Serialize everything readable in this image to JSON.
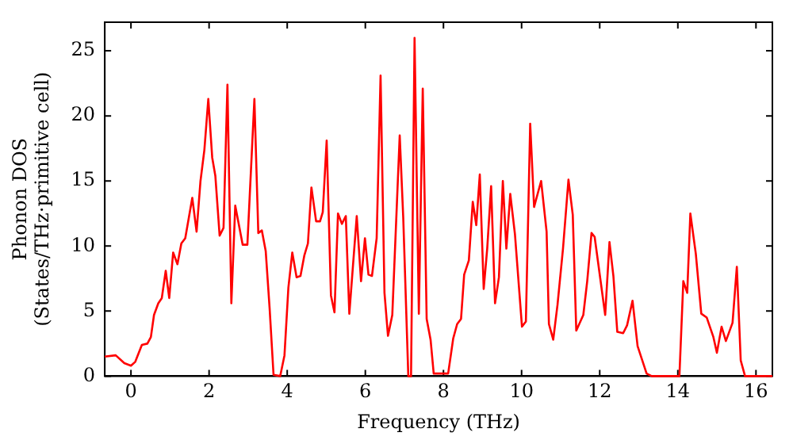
{
  "chart_data": {
    "type": "line",
    "xlabel": "Frequency (THz)",
    "ylabel": "Phonon DOS\n(States/THz·primitive cell)",
    "xlim": [
      -0.67,
      16.42
    ],
    "ylim": [
      0,
      27.2
    ],
    "xticks": [
      0,
      2,
      4,
      6,
      8,
      10,
      12,
      14,
      16
    ],
    "yticks": [
      0,
      5,
      10,
      15,
      20,
      25
    ],
    "grid": false,
    "legend": false,
    "marker": "none",
    "line_style": "solid",
    "series": [
      {
        "color": "#ff0000",
        "x": [
          -0.67,
          -0.39,
          -0.17,
          0,
          0.11,
          0.28,
          0.42,
          0.51,
          0.59,
          0.7,
          0.79,
          0.89,
          0.98,
          1.08,
          1.19,
          1.29,
          1.39,
          1.57,
          1.68,
          1.78,
          1.88,
          1.98,
          2.08,
          2.16,
          2.27,
          2.37,
          2.47,
          2.57,
          2.67,
          2.86,
          2.98,
          3.16,
          3.26,
          3.35,
          3.45,
          3.55,
          3.65,
          3.82,
          3.93,
          4.03,
          4.13,
          4.24,
          4.34,
          4.44,
          4.53,
          4.62,
          4.74,
          4.84,
          4.91,
          5.01,
          5.12,
          5.21,
          5.3,
          5.4,
          5.5,
          5.59,
          5.78,
          5.89,
          5.99,
          6.08,
          6.17,
          6.29,
          6.39,
          6.49,
          6.58,
          6.69,
          6.88,
          6.97,
          7.1,
          7.17,
          7.26,
          7.37,
          7.47,
          7.57,
          7.67,
          7.75,
          8.12,
          8.25,
          8.35,
          8.45,
          8.53,
          8.65,
          8.75,
          8.84,
          8.93,
          9.03,
          9.12,
          9.22,
          9.32,
          9.42,
          9.52,
          9.61,
          9.71,
          9.83,
          10.01,
          10.11,
          10.22,
          10.32,
          10.5,
          10.64,
          10.7,
          10.81,
          10.92,
          11.06,
          11.2,
          11.31,
          11.4,
          11.58,
          11.68,
          11.79,
          11.87,
          12.14,
          12.25,
          12.35,
          12.45,
          12.6,
          12.7,
          12.84,
          12.97,
          13.2,
          13.33,
          14.04,
          14.14,
          14.24,
          14.32,
          14.46,
          14.6,
          14.74,
          14.91,
          15.0,
          15.12,
          15.23,
          15.4,
          15.51,
          15.61,
          15.72,
          16.42
        ],
        "values": [
          1.5,
          1.6,
          1.0,
          0.8,
          1.1,
          2.4,
          2.5,
          3.0,
          4.7,
          5.6,
          6.0,
          8.1,
          6.0,
          9.5,
          8.6,
          10.2,
          10.6,
          13.7,
          11.1,
          15.0,
          17.4,
          21.3,
          16.8,
          15.4,
          10.8,
          11.4,
          22.4,
          5.6,
          13.1,
          10.1,
          10.1,
          21.3,
          11.0,
          11.2,
          9.6,
          5.2,
          0.1,
          0,
          1.6,
          6.8,
          9.5,
          7.6,
          7.7,
          9.3,
          10.2,
          14.5,
          11.9,
          11.9,
          12.6,
          18.1,
          6.2,
          4.9,
          12.5,
          11.7,
          12.3,
          4.8,
          12.3,
          7.3,
          10.6,
          7.8,
          7.7,
          10.6,
          23.1,
          6.4,
          3.1,
          4.7,
          18.5,
          12.2,
          0,
          0,
          26.0,
          4.8,
          22.1,
          4.4,
          2.8,
          0.2,
          0.2,
          2.9,
          4.0,
          4.4,
          7.8,
          8.9,
          13.4,
          11.6,
          15.5,
          6.7,
          9.8,
          14.6,
          5.6,
          7.6,
          15.0,
          9.8,
          14.0,
          10.9,
          3.8,
          4.2,
          19.4,
          13.0,
          15.0,
          11.1,
          4.0,
          2.8,
          5.5,
          9.8,
          15.1,
          12.4,
          3.5,
          4.7,
          7.3,
          11.0,
          10.7,
          4.7,
          10.3,
          7.7,
          3.4,
          3.3,
          3.9,
          5.8,
          2.3,
          0.2,
          0,
          0,
          7.3,
          6.4,
          12.5,
          9.4,
          4.8,
          4.5,
          3.0,
          1.8,
          3.8,
          2.7,
          4.1,
          8.4,
          1.2,
          0,
          0
        ]
      }
    ]
  }
}
